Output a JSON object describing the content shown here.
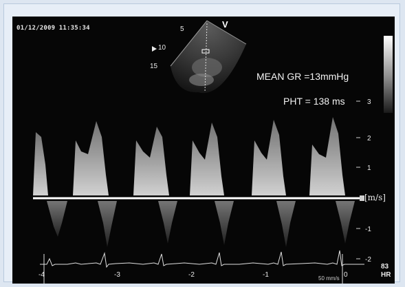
{
  "timestamp": "01/12/2009 11:35:34",
  "probe_label": "V",
  "depth_marks": [
    "5",
    "10",
    "15"
  ],
  "mean_gradient": "MEAN  GR =13mmHg",
  "pht": "PHT = 138 ms",
  "velocity_unit": "[m/s]",
  "velocity_ticks": [
    "3",
    "2",
    "1",
    "-1",
    "-2"
  ],
  "time_ticks": [
    "-4",
    "-3",
    "-2",
    "-1",
    "0"
  ],
  "sweep_speed": "50 mm/s",
  "heart_rate_value": "83",
  "heart_rate_label": "HR",
  "colors": {
    "background": "#dde6f1",
    "screen": "#060606",
    "spectrum": "#cfcfcf",
    "baseline": "#ffffff"
  }
}
